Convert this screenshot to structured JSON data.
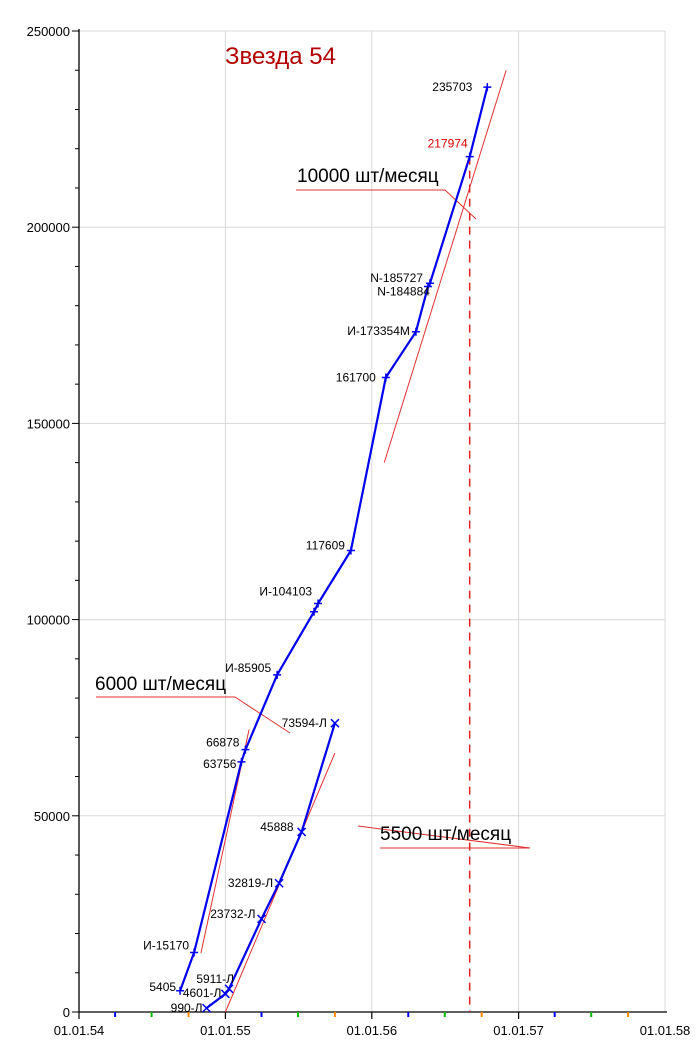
{
  "chart_data": {
    "type": "line",
    "title": "Звезда 54",
    "xlabel": "",
    "ylabel": "",
    "xlim": [
      "01.01.54",
      "01.01.58"
    ],
    "ylim": [
      0,
      250000
    ],
    "x_ticks": [
      "01.01.54",
      "01.01.55",
      "01.01.56",
      "01.01.57",
      "01.01.58"
    ],
    "y_ticks": [
      0,
      50000,
      100000,
      150000,
      200000,
      250000
    ],
    "grid": true,
    "series": [
      {
        "color": "#0000ee",
        "points": [
          {
            "x": "10.09.54",
            "y": 5405,
            "label": "5405"
          },
          {
            "x": "15.10.54",
            "y": 15170,
            "label": "И-15170"
          },
          {
            "x": "10.02.55",
            "y": 63756,
            "label": "63756"
          },
          {
            "x": "20.02.55",
            "y": 66878,
            "label": "66878"
          },
          {
            "x": "10.05.55",
            "y": 85905,
            "label": "И-85905"
          },
          {
            "x": "10.08.55",
            "y": 102000,
            "label": ""
          },
          {
            "x": "20.08.55",
            "y": 104103,
            "label": "И-104103"
          },
          {
            "x": "10.11.55",
            "y": 117609,
            "label": "117609"
          },
          {
            "x": "05.02.56",
            "y": 161700,
            "label": "161700"
          },
          {
            "x": "20.04.56",
            "y": 173354,
            "label": "И-173354М"
          },
          {
            "x": "20.05.56",
            "y": 184884,
            "label": "N-184884"
          },
          {
            "x": "25.05.56",
            "y": 185727,
            "label": "N-185727"
          },
          {
            "x": "01.09.56",
            "y": 217974,
            "label": "217974"
          },
          {
            "x": "15.10.56",
            "y": 235703,
            "label": "235703"
          }
        ]
      },
      {
        "color": "#0000ee",
        "points": [
          {
            "x": "15.11.54",
            "y": 990,
            "label": "990-Л"
          },
          {
            "x": "01.01.55",
            "y": 4601,
            "label": "4601-Л"
          },
          {
            "x": "10.01.55",
            "y": 5911,
            "label": "5911-Л"
          },
          {
            "x": "01.04.55",
            "y": 23732,
            "label": "23732-Л"
          },
          {
            "x": "15.05.55",
            "y": 32819,
            "label": "32819-Л"
          },
          {
            "x": "10.07.55",
            "y": 45888,
            "label": "45888"
          },
          {
            "x": "01.10.55",
            "y": 73594,
            "label": "73594-Л"
          }
        ]
      }
    ],
    "highlight": {
      "label": "217974",
      "x": "01.09.56",
      "y": 217974,
      "color": "#d80000"
    },
    "trend_lines": [
      {
        "label": "6000 шт/месяц",
        "from": {
          "x": "01.11.54",
          "y": 15000
        },
        "to": {
          "x": "01.03.55",
          "y": 72000
        }
      },
      {
        "label": "10000 шт/месяц",
        "from": {
          "x": "01.02.56",
          "y": 140000
        },
        "to": {
          "x": "01.12.56",
          "y": 240000
        }
      },
      {
        "label": "5500 шт/месяц",
        "from": {
          "x": "01.01.55",
          "y": 0
        },
        "to": {
          "x": "01.10.55",
          "y": 66000
        }
      }
    ]
  }
}
